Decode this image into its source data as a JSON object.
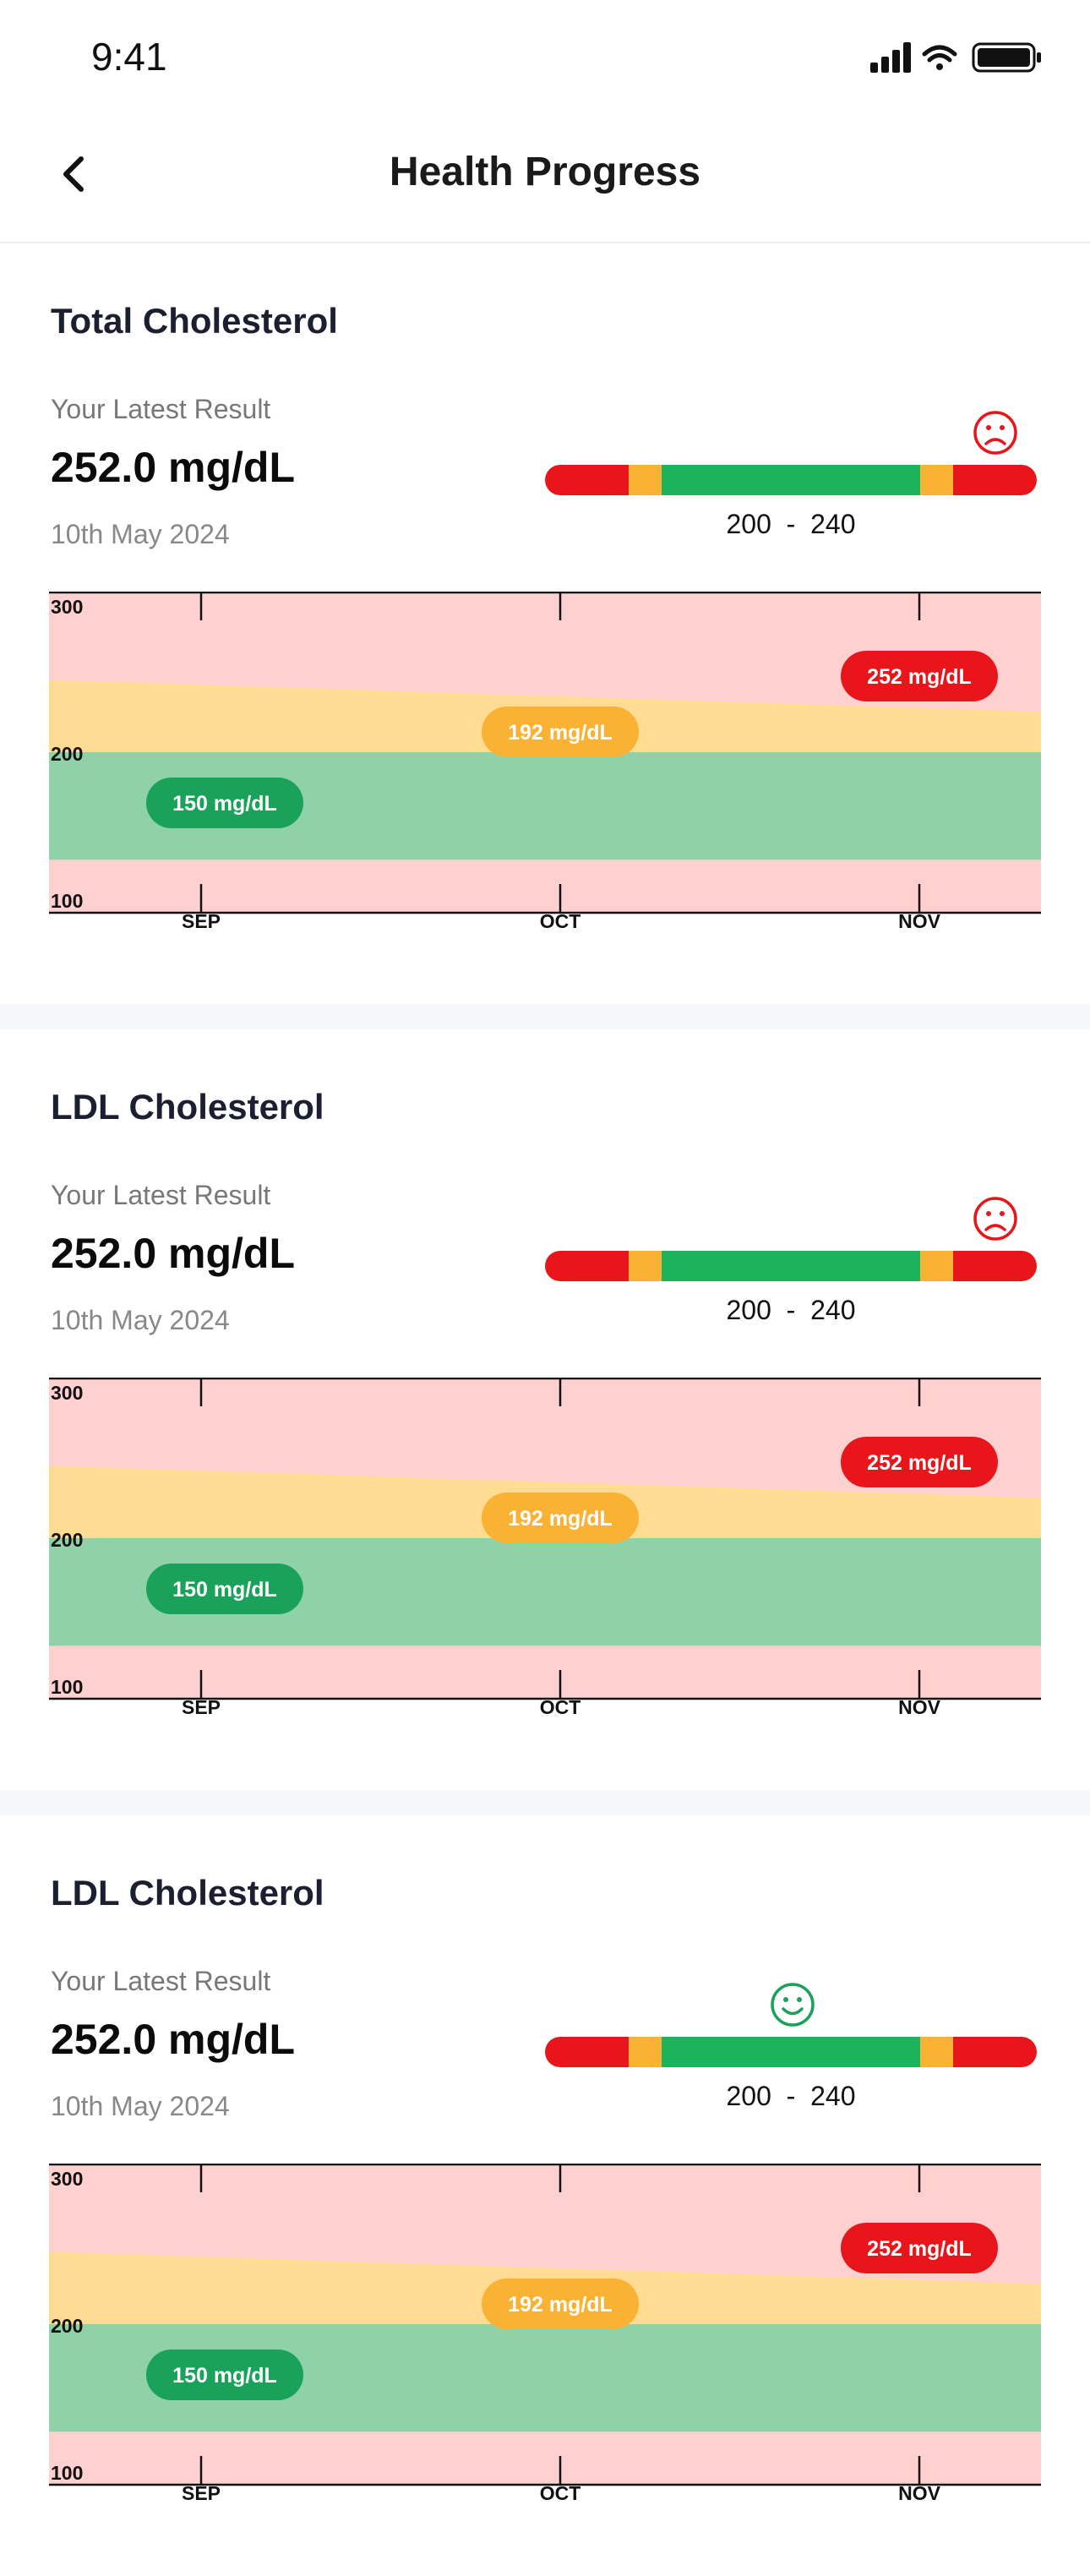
{
  "status_bar": {
    "time": "9:41"
  },
  "nav": {
    "title": "Health Progress"
  },
  "cards": [
    {
      "title": "Total Cholesterol",
      "latest_label": "Your Latest Result",
      "latest_value": "252.0 mg/dL",
      "latest_date": "10th May 2024",
      "range_label": "200  -  240",
      "mood": "sad",
      "chart_data": {
        "type": "line",
        "categories": [
          "SEP",
          "OCT",
          "NOV"
        ],
        "ytick_labels": [
          "300",
          "200",
          "100"
        ],
        "ylim": [
          100,
          300
        ],
        "points": [
          {
            "x": "SEP",
            "y": 150,
            "label": "150 mg/dL",
            "color": "#1aa15a"
          },
          {
            "x": "OCT",
            "y": 192,
            "label": "192 mg/dL",
            "color": "#f9b233"
          },
          {
            "x": "NOV",
            "y": 252,
            "label": "252 mg/dL",
            "color": "#e8161b"
          }
        ]
      }
    },
    {
      "title": "LDL Cholesterol",
      "latest_label": "Your Latest Result",
      "latest_value": "252.0 mg/dL",
      "latest_date": "10th May 2024",
      "range_label": "200  -  240",
      "mood": "sad",
      "chart_data": {
        "type": "line",
        "categories": [
          "SEP",
          "OCT",
          "NOV"
        ],
        "ytick_labels": [
          "300",
          "200",
          "100"
        ],
        "ylim": [
          100,
          300
        ],
        "points": [
          {
            "x": "SEP",
            "y": 150,
            "label": "150 mg/dL",
            "color": "#1aa15a"
          },
          {
            "x": "OCT",
            "y": 192,
            "label": "192 mg/dL",
            "color": "#f9b233"
          },
          {
            "x": "NOV",
            "y": 252,
            "label": "252 mg/dL",
            "color": "#e8161b"
          }
        ]
      }
    },
    {
      "title": "LDL Cholesterol",
      "latest_label": "Your Latest Result",
      "latest_value": "252.0 mg/dL",
      "latest_date": "10th May 2024",
      "range_label": "200  -  240",
      "mood": "happy",
      "chart_data": {
        "type": "line",
        "categories": [
          "SEP",
          "OCT",
          "NOV"
        ],
        "ytick_labels": [
          "300",
          "200",
          "100"
        ],
        "ylim": [
          100,
          300
        ],
        "points": [
          {
            "x": "SEP",
            "y": 150,
            "label": "150 mg/dL",
            "color": "#1aa15a"
          },
          {
            "x": "OCT",
            "y": 192,
            "label": "192 mg/dL",
            "color": "#f9b233"
          },
          {
            "x": "NOV",
            "y": 252,
            "label": "252 mg/dL",
            "color": "#e8161b"
          }
        ]
      }
    }
  ],
  "colors": {
    "red": "#e8161b",
    "amber": "#f9b233",
    "green": "#1bb35c",
    "band_red": "#ffd0d0",
    "band_amber": "#ffdc91",
    "band_green": "#8fd1a9",
    "sad": "#e8161b",
    "happy": "#1aa15a"
  }
}
